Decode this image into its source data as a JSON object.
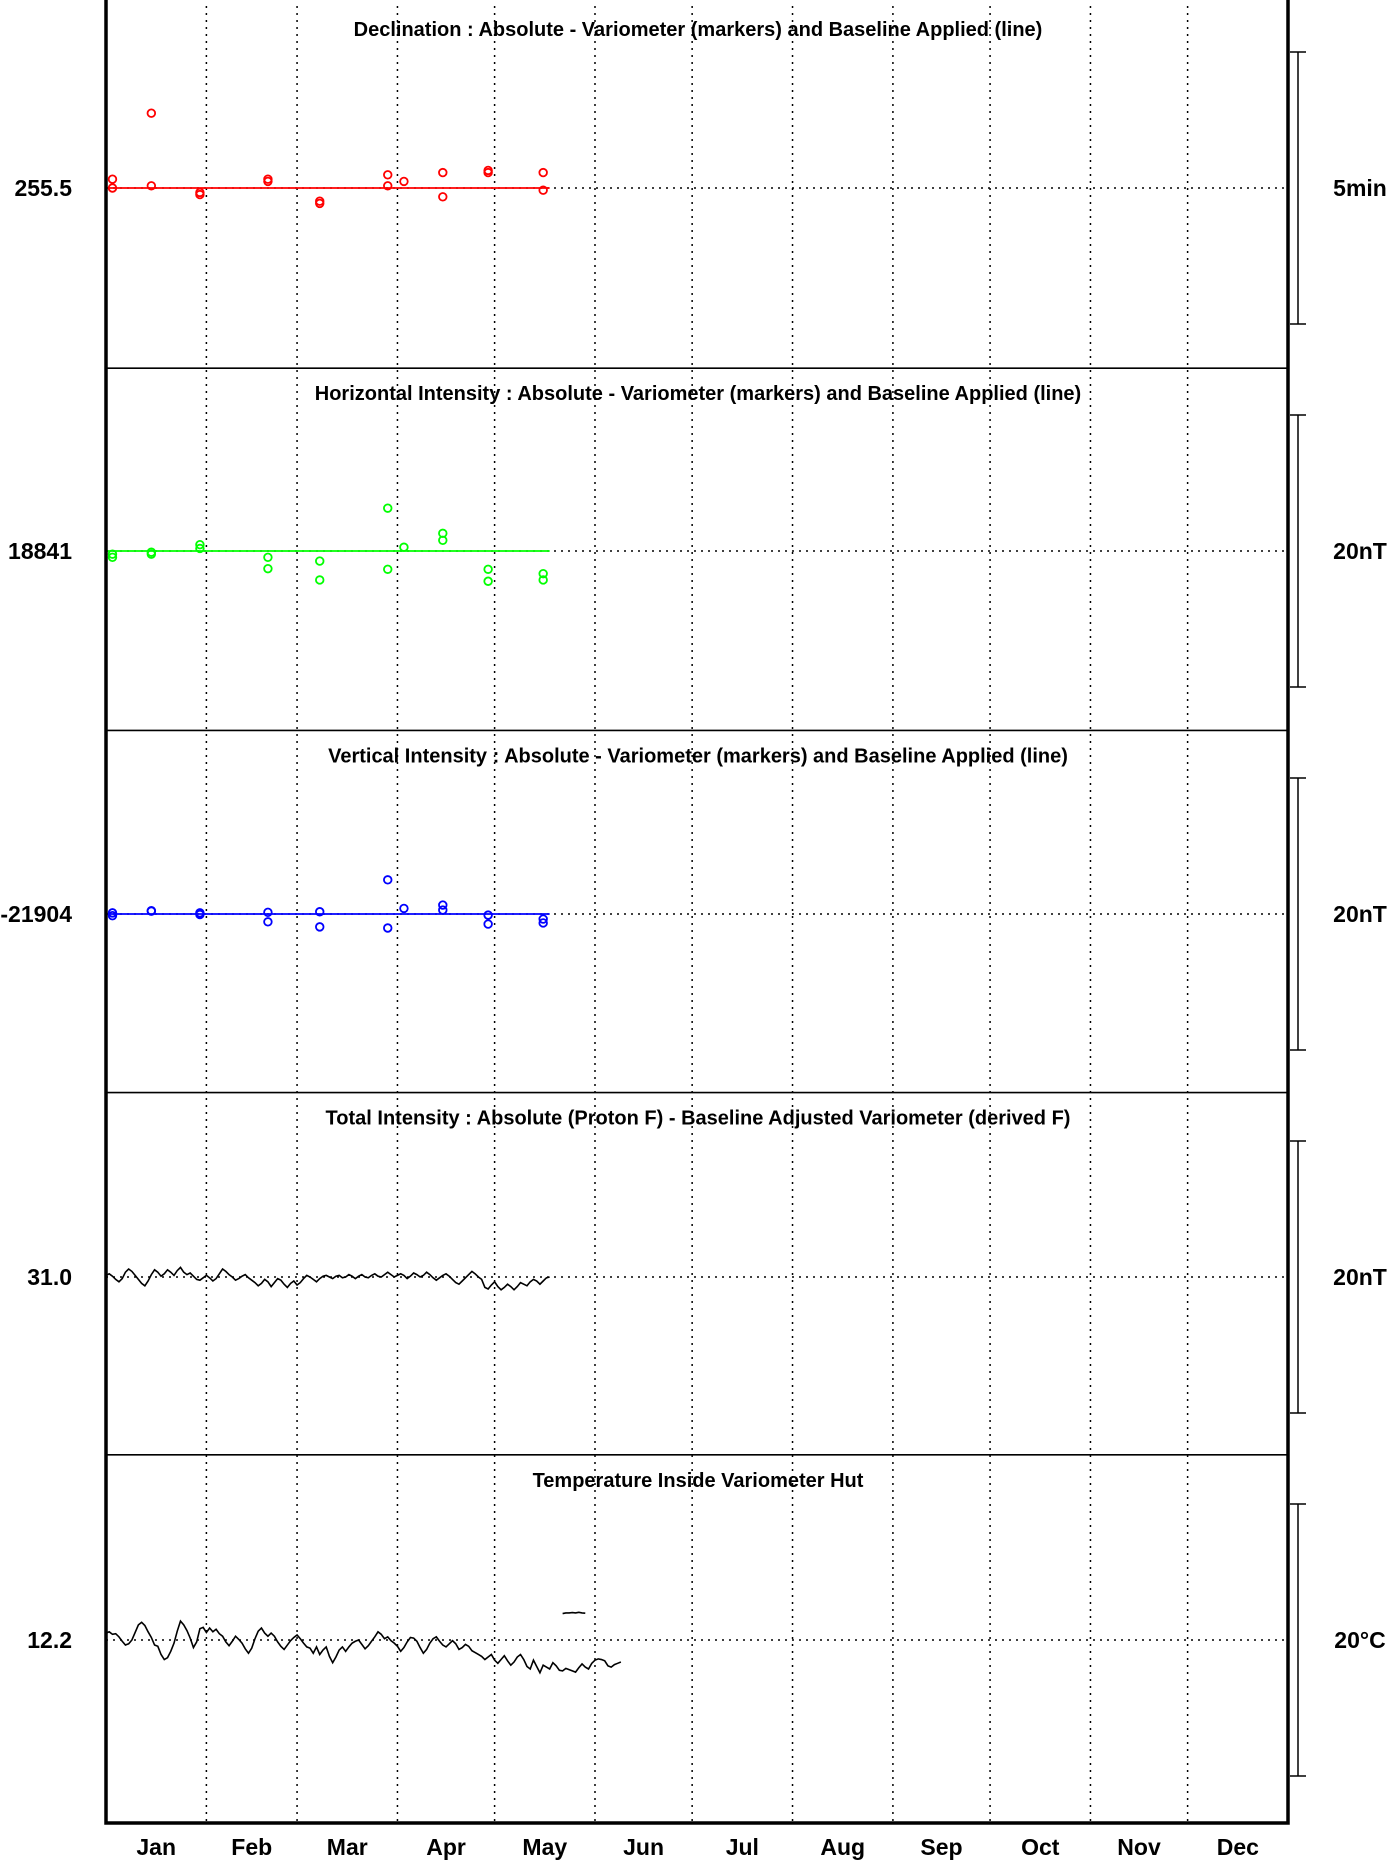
{
  "chart_data": {
    "type": "line",
    "xaxis": {
      "months": [
        "Jan",
        "Feb",
        "Mar",
        "Apr",
        "May",
        "Jun",
        "Jul",
        "Aug",
        "Sep",
        "Oct",
        "Nov",
        "Dec"
      ],
      "range_days": [
        0,
        365
      ],
      "grid": "dotted"
    },
    "panels": [
      {
        "id": "declination",
        "title": "Declination : Absolute - Variometer (markers) and Baseline Applied (line)",
        "baseline_label": "255.5",
        "scale_label": "5min",
        "color": "#ff0000",
        "baseline_days": [
          0,
          137
        ],
        "markers": [
          [
            2,
            2.0
          ],
          [
            2,
            0.0
          ],
          [
            14,
            0.5
          ],
          [
            14,
            17.0
          ],
          [
            29,
            -1.0
          ],
          [
            29,
            -1.5
          ],
          [
            50,
            2.0
          ],
          [
            50,
            1.5
          ],
          [
            66,
            -3.0
          ],
          [
            66,
            -3.5
          ],
          [
            87,
            3.0
          ],
          [
            87,
            0.5
          ],
          [
            92,
            1.5
          ],
          [
            104,
            3.5
          ],
          [
            104,
            -2.0
          ],
          [
            118,
            4.0
          ],
          [
            118,
            3.5
          ],
          [
            135,
            3.5
          ],
          [
            135,
            -0.5
          ]
        ]
      },
      {
        "id": "horizontal",
        "title": "Horizontal Intensity : Absolute - Variometer (markers) and Baseline Applied (line)",
        "baseline_label": "18841",
        "scale_label": "20nT",
        "color": "#00ff00",
        "baseline_days": [
          0,
          137
        ],
        "markers": [
          [
            2,
            -0.5
          ],
          [
            2,
            -1.0
          ],
          [
            14,
            -0.5
          ],
          [
            14,
            -0.2
          ],
          [
            29,
            1.0
          ],
          [
            29,
            0.4
          ],
          [
            50,
            -1.0
          ],
          [
            50,
            -2.8
          ],
          [
            66,
            -1.6
          ],
          [
            66,
            -4.6
          ],
          [
            87,
            6.8
          ],
          [
            87,
            -2.9
          ],
          [
            92,
            0.6
          ],
          [
            104,
            2.8
          ],
          [
            104,
            1.7
          ],
          [
            118,
            -2.9
          ],
          [
            118,
            -4.8
          ],
          [
            135,
            -3.6
          ],
          [
            135,
            -4.6
          ]
        ]
      },
      {
        "id": "vertical",
        "title": "Vertical Intensity : Absolute - Variometer (markers) and Baseline Applied (line)",
        "baseline_label": "-21904",
        "scale_label": "20nT",
        "color": "#0000ff",
        "baseline_days": [
          0,
          137
        ],
        "markers": [
          [
            2,
            0.2
          ],
          [
            2,
            -0.3
          ],
          [
            14,
            0.6
          ],
          [
            14,
            0.5
          ],
          [
            29,
            0.2
          ],
          [
            29,
            -0.1
          ],
          [
            50,
            0.3
          ],
          [
            50,
            -1.4
          ],
          [
            66,
            0.4
          ],
          [
            66,
            -2.3
          ],
          [
            87,
            6.1
          ],
          [
            87,
            -2.5
          ],
          [
            92,
            1.0
          ],
          [
            104,
            1.6
          ],
          [
            104,
            0.7
          ],
          [
            118,
            -0.2
          ],
          [
            118,
            -1.8
          ],
          [
            135,
            -0.9
          ],
          [
            135,
            -1.6
          ]
        ]
      },
      {
        "id": "total",
        "title": "Total Intensity : Absolute (Proton F) - Baseline Adjusted Variometer (derived F)",
        "baseline_label": "31.0",
        "scale_label": "20nT",
        "color": "#000000",
        "line_start_day": 0,
        "line": [
          0.2,
          0.4,
          0.1,
          -0.3,
          -0.6,
          -0.2,
          0.6,
          1.0,
          0.7,
          0.2,
          -0.3,
          -0.8,
          -1.1,
          -0.5,
          0.3,
          0.9,
          0.6,
          0.1,
          0.4,
          0.9,
          0.6,
          0.2,
          0.8,
          1.2,
          0.6,
          0.3,
          0.5,
          0.1,
          -0.3,
          -0.4,
          -0.1,
          0.2,
          -0.1,
          -0.5,
          -0.2,
          0.4,
          1.0,
          0.7,
          0.3,
          0.0,
          -0.4,
          -0.2,
          0.1,
          0.3,
          -0.1,
          -0.4,
          -0.7,
          -1.1,
          -0.8,
          -0.3,
          -0.6,
          -1.2,
          -0.7,
          -0.2,
          -0.4,
          -0.9,
          -1.3,
          -0.8,
          -0.5,
          -1.0,
          -0.7,
          -0.2,
          0.2,
          0.0,
          -0.3,
          -0.6,
          -0.2,
          0.1,
          0.2,
          0.0,
          -0.2,
          0.1,
          0.2,
          -0.1,
          0.0,
          0.3,
          0.1,
          -0.2,
          0.1,
          0.3,
          0.0,
          -0.1,
          0.2,
          0.4,
          0.1,
          0.0,
          0.3,
          0.6,
          0.3,
          0.0,
          0.2,
          0.4,
          0.2,
          -0.2,
          0.1,
          0.5,
          0.3,
          0.0,
          0.2,
          0.6,
          0.3,
          -0.1,
          -0.4,
          -0.1,
          0.2,
          0.4,
          0.1,
          -0.3,
          -0.7,
          -0.9,
          -0.5,
          -0.1,
          0.3,
          0.7,
          0.4,
          0.0,
          -0.3,
          -1.3,
          -1.5,
          -1.0,
          -0.6,
          -1.2,
          -1.6,
          -1.3,
          -0.9,
          -1.2,
          -1.6,
          -1.2,
          -0.7,
          -0.9,
          -1.1,
          -0.6,
          -0.3,
          -0.5,
          -0.9,
          -0.5,
          -0.1,
          0.0
        ]
      },
      {
        "id": "temperature",
        "title": "Temperature Inside Variometer Hut",
        "baseline_label": "12.2",
        "scale_label": "20°C",
        "color": "#000000",
        "line_start_day": 0,
        "line": [
          1.1,
          1.3,
          0.9,
          1.0,
          0.5,
          -0.2,
          -0.8,
          -0.6,
          0.0,
          1.2,
          2.4,
          2.8,
          2.3,
          1.3,
          0.4,
          -0.8,
          -1.0,
          -2.3,
          -3.1,
          -2.8,
          -1.8,
          -0.5,
          1.4,
          3.0,
          2.4,
          1.5,
          0.3,
          -1.2,
          -0.3,
          1.8,
          2.0,
          1.2,
          1.9,
          1.3,
          1.7,
          1.0,
          0.6,
          -0.3,
          -0.9,
          -0.2,
          0.6,
          0.1,
          -0.5,
          -1.4,
          -2.1,
          -1.3,
          0.2,
          1.4,
          1.9,
          1.1,
          0.6,
          1.1,
          0.6,
          -0.3,
          -1.0,
          -1.5,
          -0.8,
          -0.1,
          0.4,
          0.8,
          0.2,
          -0.5,
          -1.1,
          -1.3,
          -2.1,
          -1.1,
          -2.3,
          -1.6,
          -1.1,
          -2.6,
          -3.6,
          -2.7,
          -1.6,
          -1.1,
          -1.8,
          -1.1,
          -0.5,
          -0.2,
          0.0,
          -0.7,
          -1.4,
          -0.9,
          -0.2,
          0.5,
          1.3,
          0.9,
          0.2,
          0.5,
          -0.1,
          -0.5,
          -1.0,
          -1.8,
          -1.2,
          -0.3,
          0.4,
          0.3,
          -0.2,
          -1.2,
          -2.1,
          -1.5,
          -0.5,
          0.2,
          0.5,
          -0.2,
          -0.8,
          -1.1,
          -0.6,
          -0.1,
          -0.6,
          -1.5,
          -1.2,
          -0.7,
          -1.0,
          -1.7,
          -2.0,
          -2.3,
          -2.6,
          -3.1,
          -2.7,
          -2.3,
          -3.2,
          -3.7,
          -3.1,
          -2.5,
          -3.3,
          -4.0,
          -3.5,
          -2.7,
          -2.3,
          -3.1,
          -4.2,
          -4.6,
          -3.2,
          -4.2,
          -5.2,
          -4.0,
          -4.3,
          -4.6,
          -3.6,
          -4.1,
          -4.8,
          -4.9,
          -4.5,
          -4.7,
          -4.9,
          -5.1,
          -4.4,
          -3.8,
          -4.3,
          -4.6,
          -3.7,
          -3.2,
          -3.0,
          -3.1,
          -3.3,
          -4.1,
          -4.3,
          -3.9,
          -3.7,
          -3.5
        ],
        "line2_start_day": 141,
        "line2": [
          4.2,
          4.3,
          4.3,
          4.35,
          4.3,
          4.4,
          4.3,
          4.25
        ]
      }
    ]
  }
}
